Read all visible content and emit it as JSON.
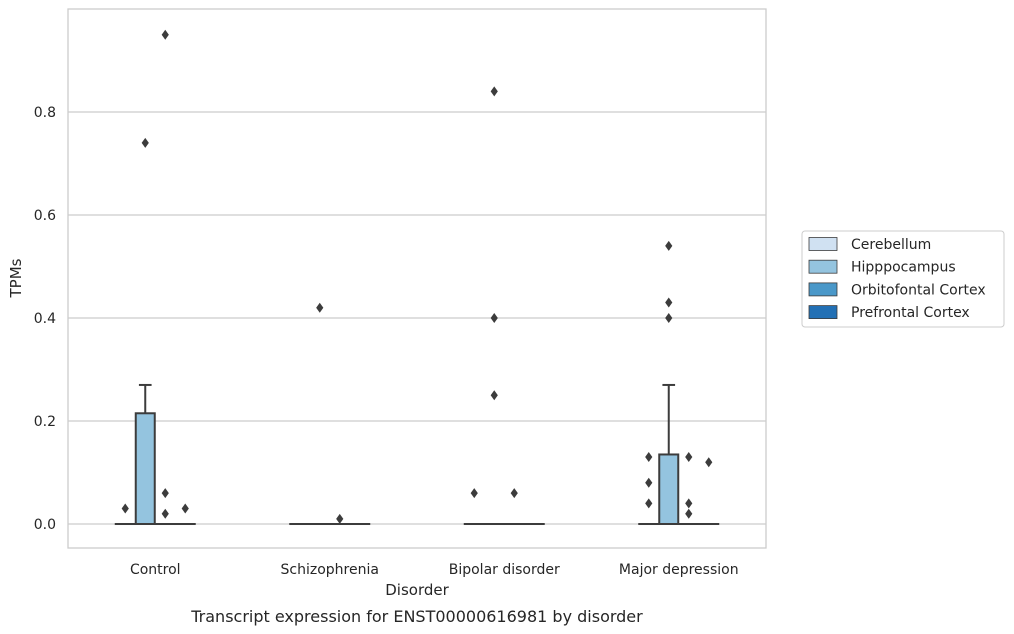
{
  "chart_data": {
    "type": "box",
    "title": "",
    "caption": "Transcript expression for ENST00000616981 by disorder",
    "xlabel": "Disorder",
    "ylabel": "TPMs",
    "ylim": [
      -0.045,
      0.98
    ],
    "yticks": [
      0.0,
      0.2,
      0.4,
      0.6,
      0.8
    ],
    "ytick_labels": [
      "0.0",
      "0.2",
      "0.4",
      "0.6",
      "0.8"
    ],
    "grid": "horizontal",
    "legend_position": "right",
    "categories": [
      "Control",
      "Schizophrenia",
      "Bipolar disorder",
      "Major depression"
    ],
    "series": [
      {
        "name": "Cerebellum",
        "color": "#d0e1f2",
        "boxes": [
          {
            "category": "Control",
            "q1": 0,
            "median": 0,
            "q3": 0,
            "whisker_low": 0,
            "whisker_high": 0,
            "fliers": [
              0.03
            ]
          },
          {
            "category": "Schizophrenia",
            "q1": 0,
            "median": 0,
            "q3": 0,
            "whisker_low": 0,
            "whisker_high": 0,
            "fliers": []
          },
          {
            "category": "Bipolar disorder",
            "q1": 0,
            "median": 0,
            "q3": 0,
            "whisker_low": 0,
            "whisker_high": 0,
            "fliers": [
              0.06
            ]
          },
          {
            "category": "Major depression",
            "q1": 0,
            "median": 0,
            "q3": 0,
            "whisker_low": 0,
            "whisker_high": 0,
            "fliers": [
              0.13,
              0.08,
              0.04
            ]
          }
        ]
      },
      {
        "name": "Hipppocampus",
        "color": "#94c4df",
        "boxes": [
          {
            "category": "Control",
            "q1": 0,
            "median": 0,
            "q3": 0.215,
            "whisker_low": 0,
            "whisker_high": 0.27,
            "fliers": [
              0.74
            ]
          },
          {
            "category": "Schizophrenia",
            "q1": 0,
            "median": 0,
            "q3": 0,
            "whisker_low": 0,
            "whisker_high": 0,
            "fliers": [
              0.42
            ]
          },
          {
            "category": "Bipolar disorder",
            "q1": 0,
            "median": 0,
            "q3": 0,
            "whisker_low": 0,
            "whisker_high": 0,
            "fliers": [
              0.84,
              0.4,
              0.25
            ]
          },
          {
            "category": "Major depression",
            "q1": 0,
            "median": 0,
            "q3": 0.135,
            "whisker_low": 0,
            "whisker_high": 0.27,
            "fliers": [
              0.54,
              0.43,
              0.4
            ]
          }
        ]
      },
      {
        "name": "Orbitofontal Cortex",
        "color": "#4a98c9",
        "boxes": [
          {
            "category": "Control",
            "q1": 0,
            "median": 0,
            "q3": 0,
            "whisker_low": 0,
            "whisker_high": 0,
            "fliers": [
              0.95,
              0.06,
              0.02
            ]
          },
          {
            "category": "Schizophrenia",
            "q1": 0,
            "median": 0,
            "q3": 0,
            "whisker_low": 0,
            "whisker_high": 0,
            "fliers": [
              0.01
            ]
          },
          {
            "category": "Bipolar disorder",
            "q1": 0,
            "median": 0,
            "q3": 0,
            "whisker_low": 0,
            "whisker_high": 0,
            "fliers": [
              0.06
            ]
          },
          {
            "category": "Major depression",
            "q1": 0,
            "median": 0,
            "q3": 0,
            "whisker_low": 0,
            "whisker_high": 0,
            "fliers": [
              0.13,
              0.04,
              0.02
            ]
          }
        ]
      },
      {
        "name": "Prefrontal Cortex",
        "color": "#2270b5",
        "boxes": [
          {
            "category": "Control",
            "q1": 0,
            "median": 0,
            "q3": 0,
            "whisker_low": 0,
            "whisker_high": 0,
            "fliers": [
              0.03
            ]
          },
          {
            "category": "Schizophrenia",
            "q1": 0,
            "median": 0,
            "q3": 0,
            "whisker_low": 0,
            "whisker_high": 0,
            "fliers": []
          },
          {
            "category": "Bipolar disorder",
            "q1": 0,
            "median": 0,
            "q3": 0,
            "whisker_low": 0,
            "whisker_high": 0,
            "fliers": []
          },
          {
            "category": "Major depression",
            "q1": 0,
            "median": 0,
            "q3": 0,
            "whisker_low": 0,
            "whisker_high": 0,
            "fliers": [
              0.12
            ]
          }
        ]
      }
    ]
  }
}
